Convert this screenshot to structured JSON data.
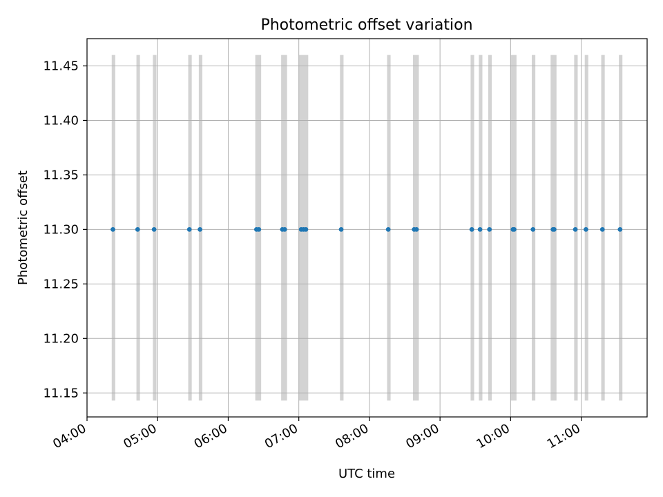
{
  "chart_data": {
    "type": "scatter",
    "title": "Photometric offset variation",
    "xlabel": "UTC time",
    "ylabel": "Photometric offset",
    "x_ticks": [
      "04:00",
      "05:00",
      "06:00",
      "07:00",
      "08:00",
      "09:00",
      "10:00",
      "11:00"
    ],
    "y_ticks": [
      "11.15",
      "11.20",
      "11.25",
      "11.30",
      "11.35",
      "11.40",
      "11.45"
    ],
    "xlim": [
      "04:00",
      "11:56"
    ],
    "ylim": [
      11.128,
      11.475
    ],
    "grid": true,
    "point_color": "#1f77b4",
    "band_color": "#d3d3d3",
    "band_range": [
      11.143,
      11.46
    ],
    "points": [
      {
        "x": "04:22",
        "y": 11.3
      },
      {
        "x": "04:43",
        "y": 11.3
      },
      {
        "x": "04:57",
        "y": 11.3
      },
      {
        "x": "05:27",
        "y": 11.3
      },
      {
        "x": "05:36",
        "y": 11.3
      },
      {
        "x": "06:24",
        "y": 11.3
      },
      {
        "x": "06:26",
        "y": 11.3
      },
      {
        "x": "06:46",
        "y": 11.3
      },
      {
        "x": "06:48",
        "y": 11.3
      },
      {
        "x": "07:02",
        "y": 11.3
      },
      {
        "x": "07:04",
        "y": 11.3
      },
      {
        "x": "07:06",
        "y": 11.3
      },
      {
        "x": "07:36",
        "y": 11.3
      },
      {
        "x": "08:16",
        "y": 11.3
      },
      {
        "x": "08:38",
        "y": 11.3
      },
      {
        "x": "08:40",
        "y": 11.3
      },
      {
        "x": "09:27",
        "y": 11.3
      },
      {
        "x": "09:34",
        "y": 11.3
      },
      {
        "x": "09:42",
        "y": 11.3
      },
      {
        "x": "10:02",
        "y": 11.3
      },
      {
        "x": "10:03",
        "y": 11.3
      },
      {
        "x": "10:19",
        "y": 11.3
      },
      {
        "x": "10:36",
        "y": 11.3
      },
      {
        "x": "10:37",
        "y": 11.3
      },
      {
        "x": "10:55",
        "y": 11.3
      },
      {
        "x": "11:04",
        "y": 11.3
      },
      {
        "x": "11:18",
        "y": 11.3
      },
      {
        "x": "11:33",
        "y": 11.3
      }
    ],
    "bands": [
      {
        "start": "04:21",
        "end": "04:24"
      },
      {
        "start": "04:42",
        "end": "04:45"
      },
      {
        "start": "04:56",
        "end": "04:59"
      },
      {
        "start": "05:26",
        "end": "05:29"
      },
      {
        "start": "05:35",
        "end": "05:38"
      },
      {
        "start": "06:23",
        "end": "06:28"
      },
      {
        "start": "06:45",
        "end": "06:50"
      },
      {
        "start": "07:00",
        "end": "07:08"
      },
      {
        "start": "07:35",
        "end": "07:38"
      },
      {
        "start": "08:15",
        "end": "08:18"
      },
      {
        "start": "08:37",
        "end": "08:42"
      },
      {
        "start": "09:26",
        "end": "09:29"
      },
      {
        "start": "09:33",
        "end": "09:36"
      },
      {
        "start": "09:41",
        "end": "09:44"
      },
      {
        "start": "10:00",
        "end": "10:05"
      },
      {
        "start": "10:18",
        "end": "10:21"
      },
      {
        "start": "10:34",
        "end": "10:39"
      },
      {
        "start": "10:54",
        "end": "10:57"
      },
      {
        "start": "11:03",
        "end": "11:06"
      },
      {
        "start": "11:17",
        "end": "11:20"
      },
      {
        "start": "11:32",
        "end": "11:35"
      }
    ]
  }
}
